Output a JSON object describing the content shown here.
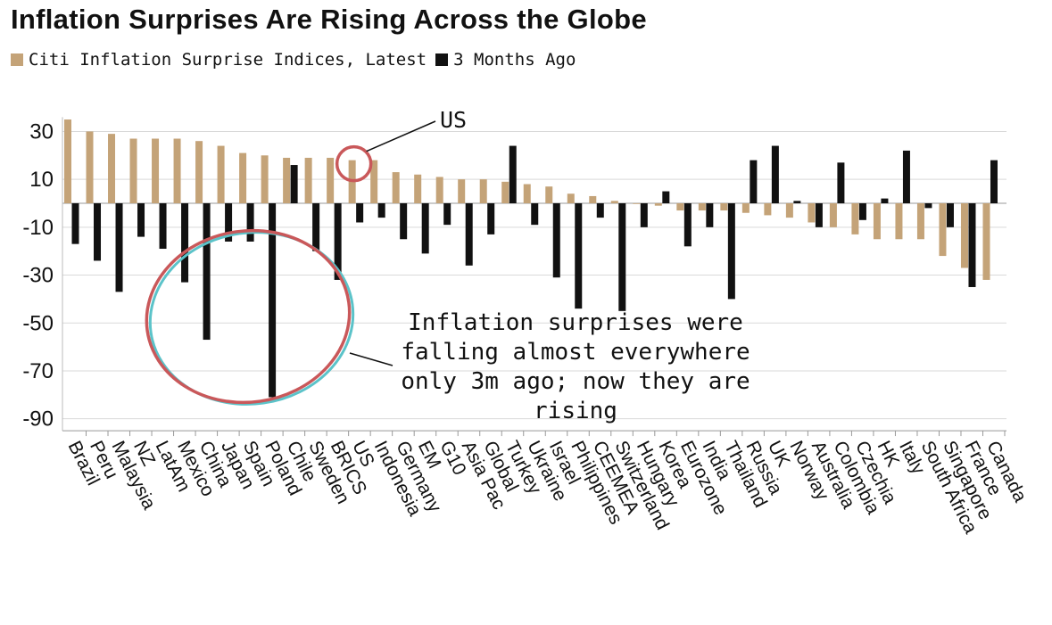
{
  "chart_title": "Inflation Surprises Are Rising Across the Globe",
  "legend": [
    {
      "label": "Citi Inflation Surprise Indices, Latest",
      "color": "#c4a378"
    },
    {
      "label": "3 Months Ago",
      "color": "#111111"
    }
  ],
  "annotations": {
    "us_label": "US",
    "note_lines": [
      "Inflation surprises were",
      "falling almost everywhere",
      "only 3m ago; now they are",
      "rising"
    ]
  },
  "chart_data": {
    "type": "bar",
    "title": "Inflation Surprises Are Rising Across the Globe",
    "subtitle": "Citi Inflation Surprise Indices",
    "ylim": [
      -95,
      36
    ],
    "yticks": [
      30,
      10,
      -10,
      -30,
      -50,
      -70,
      -90
    ],
    "grid": true,
    "legend_position": "top-left",
    "categories": [
      "Brazil",
      "Peru",
      "Malaysia",
      "NZ",
      "LatAm",
      "Mexico",
      "China",
      "Japan",
      "Spain",
      "Poland",
      "Chile",
      "Sweden",
      "BRICS",
      "US",
      "Indonesia",
      "Germany",
      "EM",
      "G10",
      "Asia Pac",
      "Global",
      "Turkey",
      "Ukraine",
      "Israel",
      "Philippines",
      "CEEMEA",
      "Switzerland",
      "Hungary",
      "Korea",
      "Eurozone",
      "India",
      "Thailand",
      "Russia",
      "UK",
      "Norway",
      "Australia",
      "Colombia",
      "Czechia",
      "HK",
      "Italy",
      "South Africa",
      "Singapore",
      "France",
      "Canada"
    ],
    "series": [
      {
        "name": "Citi Inflation Surprise Indices, Latest",
        "color": "#c4a378",
        "values": [
          35,
          30,
          29,
          27,
          27,
          27,
          26,
          24,
          21,
          20,
          19,
          19,
          19,
          18,
          18,
          13,
          12,
          11,
          10,
          10,
          9,
          8,
          7,
          4,
          3,
          1,
          0,
          -1,
          -3,
          -3,
          -3,
          -4,
          -5,
          -6,
          -8,
          -10,
          -13,
          -15,
          -15,
          -15,
          -22,
          -27,
          -32
        ]
      },
      {
        "name": "3 Months Ago",
        "color": "#111111",
        "values": [
          -17,
          -24,
          -37,
          -14,
          -19,
          -33,
          -57,
          -16,
          -16,
          -81,
          16,
          -20,
          -32,
          -8,
          -6,
          -15,
          -21,
          -9,
          -26,
          -13,
          24,
          -9,
          -31,
          -44,
          -6,
          -45,
          -10,
          5,
          -18,
          -10,
          -40,
          18,
          24,
          1,
          -10,
          17,
          -7,
          2,
          22,
          -2,
          -10,
          -35,
          18
        ]
      }
    ]
  }
}
